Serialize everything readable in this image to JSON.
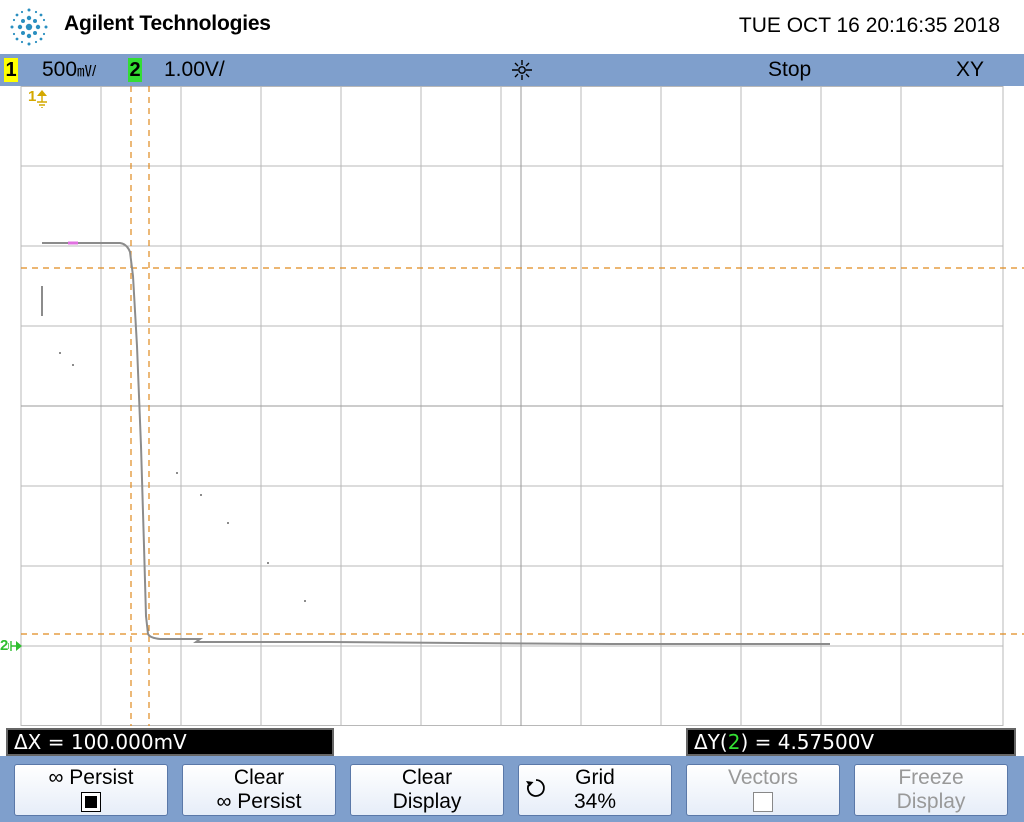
{
  "header": {
    "brand": "Agilent Technologies",
    "datetime": "TUE OCT 16 20:16:35 2018"
  },
  "statusbar": {
    "ch1_label": "1",
    "ch1_scale": "500",
    "ch1_unit_glyph": "㎷/",
    "ch2_label": "2",
    "ch2_scale": "1.00V/",
    "run_state": "Stop",
    "mode": "XY"
  },
  "markers": {
    "ch1_marker": "1",
    "ch2_marker": "2"
  },
  "readouts": {
    "delta_x_label": "ΔX = ",
    "delta_x_value": "100.000mV",
    "delta_y_label": "ΔY(",
    "delta_y_channel": "2",
    "delta_y_rest": ") = ",
    "delta_y_value": "4.57500V"
  },
  "softkeys": {
    "persist_label": "∞ Persist",
    "clear_persist_line1": "Clear",
    "clear_persist_line2": "∞ Persist",
    "clear_display_line1": "Clear",
    "clear_display_line2": "Display",
    "grid_line1": "Grid",
    "grid_line2": "34%",
    "vectors_label": "Vectors",
    "freeze_line1": "Freeze",
    "freeze_line2": "Display"
  },
  "colors": {
    "trace": "#8c8c8c",
    "cursor": "#e08a1e",
    "grid": "#b8b8b8",
    "accent": "#7f9fcc"
  }
}
